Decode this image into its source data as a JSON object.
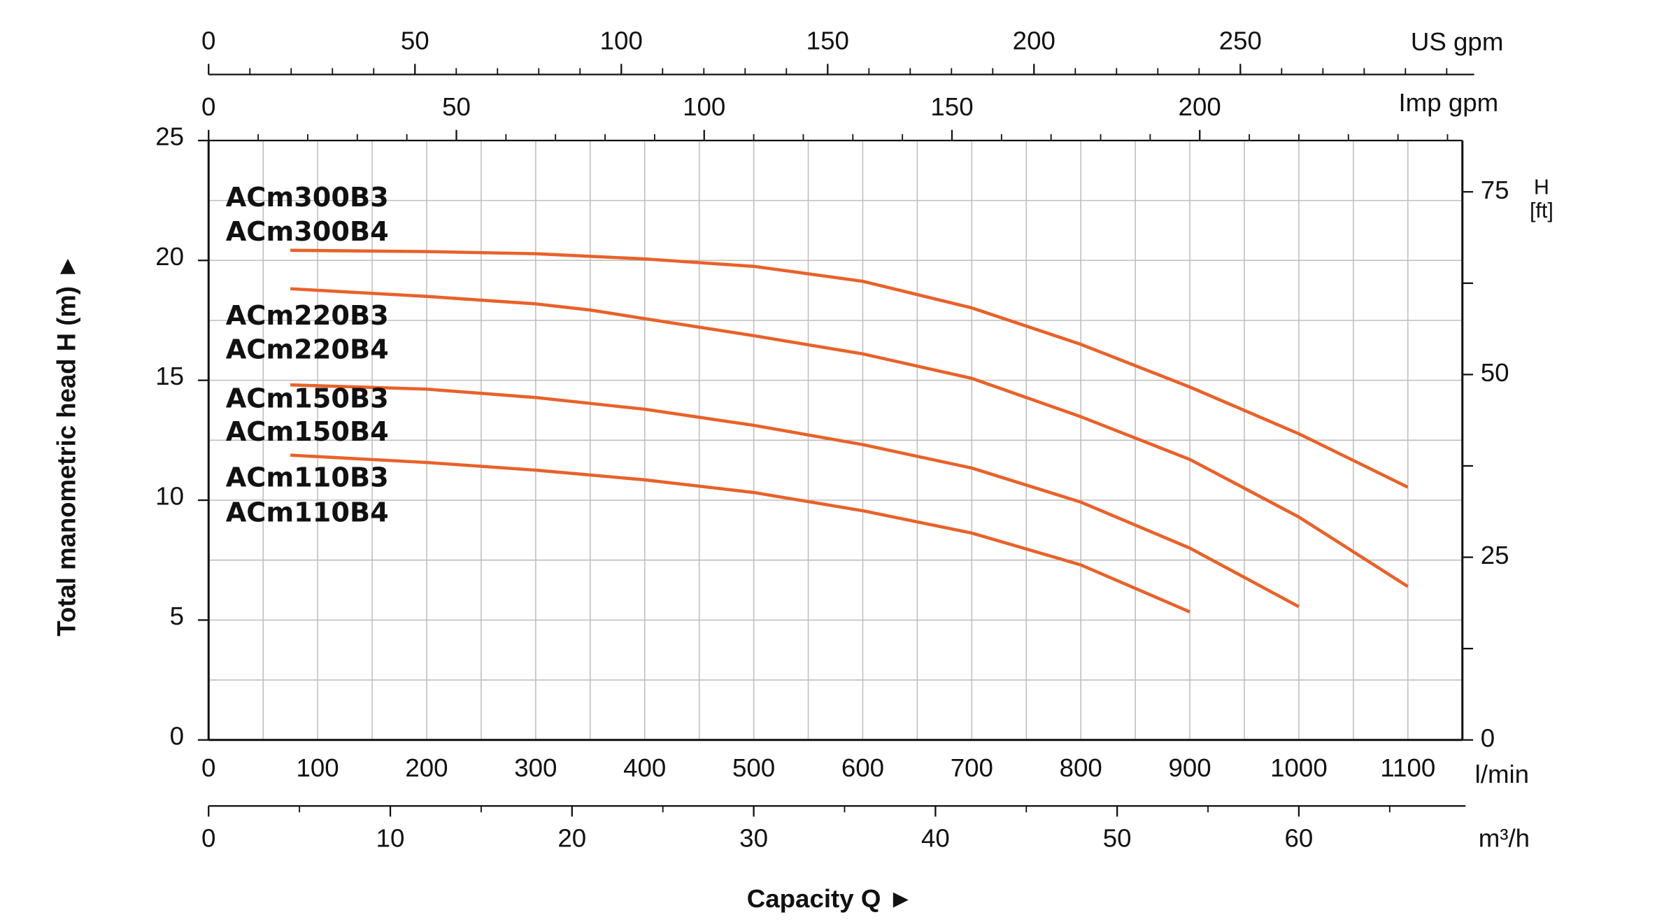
{
  "chart_data": {
    "type": "line",
    "xlabel": "Capacity Q ►",
    "ylabel": "Total manometric head H (m) ►",
    "x_unit": "l/min",
    "xlim": [
      0,
      1150
    ],
    "xticks": [
      0,
      100,
      200,
      300,
      400,
      500,
      600,
      700,
      800,
      900,
      1000,
      1100
    ],
    "minor_xticks": [
      50,
      150,
      250,
      350,
      450,
      550,
      650,
      750,
      850,
      950,
      1050
    ],
    "ylim": [
      0,
      25
    ],
    "yticks": [
      0,
      5,
      10,
      15,
      20,
      25
    ],
    "minor_yticks": [
      2.5,
      7.5,
      12.5,
      17.5,
      22.5
    ],
    "grid": true,
    "y2label": [
      "H",
      "[ft]"
    ],
    "y2lim": [
      0,
      82.02
    ],
    "y2ticks": [
      0,
      25,
      50,
      75
    ],
    "minor_y2ticks": [
      12.5,
      37.5,
      62.5
    ],
    "secondary_x_axes": [
      {
        "label": "US gpm",
        "lim": [
          0,
          303.8
        ],
        "ticks": [
          0,
          50,
          100,
          150,
          200,
          250
        ],
        "minor_ticks": [
          10,
          20,
          30,
          40,
          60,
          70,
          80,
          90,
          110,
          120,
          130,
          140,
          160,
          170,
          180,
          190,
          210,
          220,
          230,
          240,
          260,
          270,
          280,
          290,
          300
        ]
      },
      {
        "label": "Imp gpm",
        "lim": [
          0,
          253.0
        ],
        "ticks": [
          0,
          50,
          100,
          150,
          200
        ],
        "minor_ticks": [
          10,
          20,
          30,
          40,
          60,
          70,
          80,
          90,
          110,
          120,
          130,
          140,
          160,
          170,
          180,
          190,
          210,
          220,
          230,
          240,
          250
        ]
      },
      {
        "label": "m³/h",
        "lim": [
          0,
          69.0
        ],
        "ticks": [
          0,
          10,
          20,
          30,
          40,
          50,
          60
        ],
        "minor_ticks": [
          5,
          15,
          25,
          35,
          45,
          55,
          65
        ]
      }
    ],
    "series": [
      {
        "labels": [
          "ACm300B3",
          "ACm300B4"
        ],
        "color": "#e8622a",
        "x": [
          75,
          200,
          300,
          400,
          500,
          600,
          700,
          800,
          900,
          1000,
          1100
        ],
        "values": [
          20.42,
          20.37,
          20.28,
          20.06,
          19.75,
          19.13,
          18.02,
          16.5,
          14.72,
          12.77,
          10.54
        ]
      },
      {
        "labels": [
          "ACm220B3",
          "ACm220B4"
        ],
        "color": "#e8622a",
        "x": [
          75,
          200,
          300,
          350,
          400,
          500,
          600,
          700,
          800,
          900,
          1000,
          1100
        ],
        "values": [
          18.82,
          18.5,
          18.19,
          17.93,
          17.57,
          16.86,
          16.1,
          15.08,
          13.48,
          11.7,
          9.3,
          6.4
        ]
      },
      {
        "labels": [
          "ACm150B3",
          "ACm150B4"
        ],
        "color": "#e8622a",
        "x": [
          75,
          200,
          300,
          400,
          500,
          600,
          700,
          800,
          900,
          1000
        ],
        "values": [
          14.81,
          14.63,
          14.28,
          13.79,
          13.12,
          12.32,
          11.34,
          9.92,
          8.0,
          5.56
        ]
      },
      {
        "labels": [
          "ACm110B3",
          "ACm110B4"
        ],
        "color": "#e8622a",
        "x": [
          75,
          200,
          300,
          400,
          500,
          600,
          700,
          800,
          900
        ],
        "values": [
          11.88,
          11.57,
          11.25,
          10.85,
          10.32,
          9.56,
          8.63,
          7.3,
          5.34
        ]
      }
    ]
  }
}
